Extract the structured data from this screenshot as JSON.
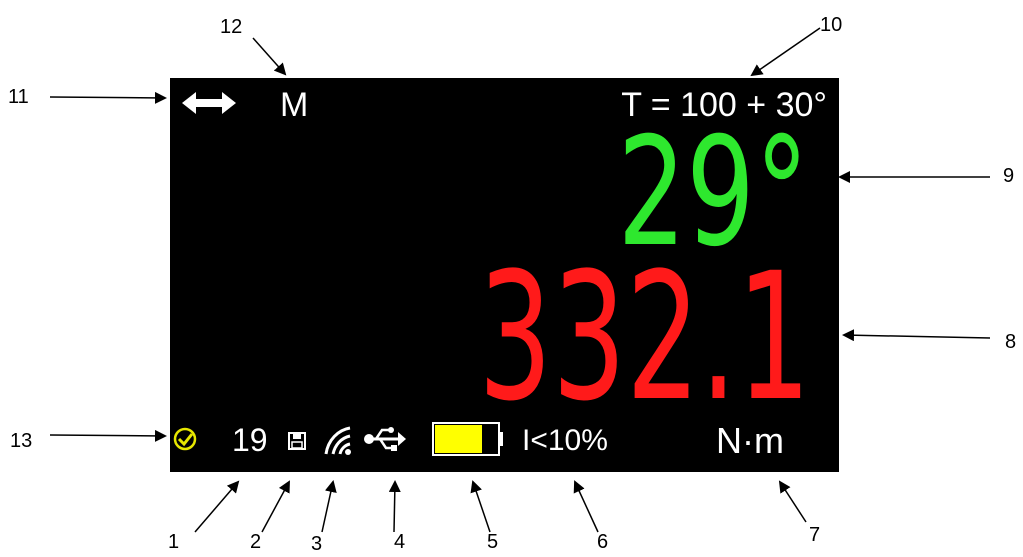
{
  "device_screen": {
    "mode": "M",
    "target": "T = 100 + 30°",
    "angle": "29°",
    "torque": "332.1",
    "count": "19",
    "current": "I<10%",
    "unit": "N·m",
    "battery_level_fraction": 0.75
  },
  "colors": {
    "screen_bg": "#000000",
    "text": "#ffffff",
    "angle": "#2ee82e",
    "torque": "#ff1a1a",
    "battery_fill": "#ffff00",
    "check_icon": "#e6e600"
  },
  "icons": [
    "double-arrow-icon",
    "check-badge-icon",
    "save-icon",
    "wifi-icon",
    "usb-icon",
    "battery-icon"
  ],
  "callouts": [
    "1",
    "2",
    "3",
    "4",
    "5",
    "6",
    "7",
    "8",
    "9",
    "10",
    "11",
    "12",
    "13"
  ]
}
